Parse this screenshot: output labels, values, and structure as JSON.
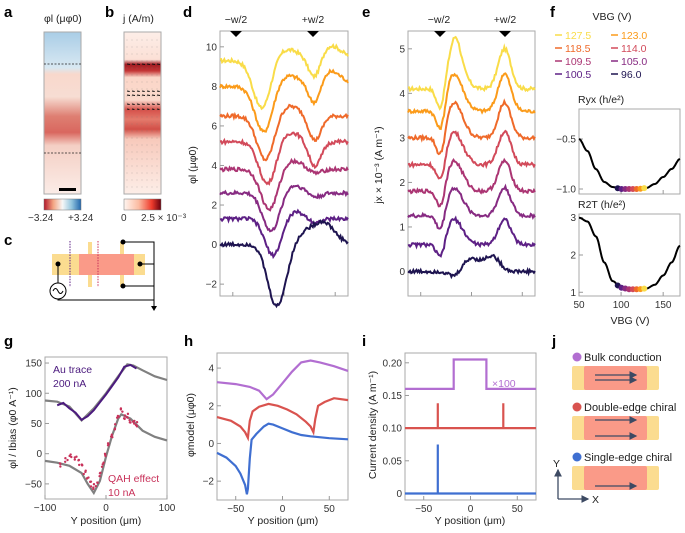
{
  "panel_labels": [
    "a",
    "b",
    "c",
    "d",
    "e",
    "f",
    "g",
    "h",
    "i",
    "j"
  ],
  "panel_a": {
    "title": "φl (μφ0)",
    "colorbar_min": "−3.24",
    "colorbar_max": "+3.24",
    "colormap": [
      "#b2182b",
      "#f4a582",
      "#f7f7f7",
      "#92c5de",
      "#2166ac"
    ]
  },
  "panel_b": {
    "title": "j (A/m)",
    "colorbar_min": "0",
    "colorbar_max": "2.5 × 10⁻³",
    "colormap": [
      "#fff5f0",
      "#fcbba1",
      "#ef3b2c",
      "#67000d"
    ]
  },
  "panel_c": {
    "description": "device schematic with AC source and ground"
  },
  "colors": {
    "sweep": [
      "#f9dc48",
      "#fb9b1a",
      "#ef6a2a",
      "#d24a5a",
      "#ab3573",
      "#872b82",
      "#5d2085",
      "#1e1450"
    ],
    "gray_fit": "#808080",
    "au_trace": "#4b1a7e",
    "qah": "#c8325a",
    "bulk": "#b26ed1",
    "double_edge": "#d9534f",
    "single_edge": "#3f6fd1",
    "device_body": "#fa9a88",
    "device_contact": "#fbdc90",
    "arrow": "#3d4a63"
  },
  "chart_data": [
    {
      "panel": "d",
      "type": "line",
      "title": "",
      "xlabel": "",
      "ylabel": "φl (μφ0)",
      "markers": [
        "−w/2",
        "+w/2"
      ],
      "ylim": [
        -2.6,
        10.8
      ],
      "yticks": [
        -2,
        0,
        2,
        4,
        6,
        8,
        10
      ],
      "series": [
        {
          "name": "127.5 V",
          "offset": 9.3
        },
        {
          "name": "123.0 V",
          "offset": 8.0
        },
        {
          "name": "118.5 V",
          "offset": 6.5
        },
        {
          "name": "114.0 V",
          "offset": 5.2
        },
        {
          "name": "109.5 V",
          "offset": 3.8
        },
        {
          "name": "105.0 V",
          "offset": 2.6
        },
        {
          "name": "100.5 V",
          "offset": 1.3
        },
        {
          "name": "96.0 V",
          "offset": 0.0
        }
      ]
    },
    {
      "panel": "e",
      "type": "line",
      "xlabel": "",
      "ylabel": "jx × 10⁻³ (A m⁻¹)",
      "markers": [
        "−w/2",
        "+w/2"
      ],
      "ylim": [
        -0.55,
        5.4
      ],
      "yticks": [
        0,
        1,
        2,
        3,
        4,
        5
      ],
      "series": [
        {
          "name": "127.5 V",
          "offset": 4.1
        },
        {
          "name": "123.0 V",
          "offset": 3.6
        },
        {
          "name": "118.5 V",
          "offset": 3.0
        },
        {
          "name": "114.0 V",
          "offset": 2.4
        },
        {
          "name": "109.5 V",
          "offset": 1.8
        },
        {
          "name": "105.0 V",
          "offset": 1.25
        },
        {
          "name": "100.5 V",
          "offset": 0.6
        },
        {
          "name": "96.0 V",
          "offset": 0.0
        }
      ]
    },
    {
      "panel": "f",
      "type": "line",
      "legend_title": "VBG (V)",
      "legend": [
        "127.5",
        "123.0",
        "118.5",
        "114.0",
        "109.5",
        "105.0",
        "100.5",
        "96.0"
      ],
      "top": {
        "ylabel": "Ryx (h/e²)",
        "ylim": [
          -1.05,
          -0.2
        ],
        "yticks": [
          -0.5,
          -1.0
        ],
        "x": [
          50,
          60,
          70,
          80,
          90,
          100,
          110,
          120,
          130,
          140,
          150,
          160,
          170
        ],
        "y": [
          -0.5,
          -0.62,
          -0.8,
          -0.93,
          -0.98,
          -1.0,
          -1.0,
          -1.0,
          -0.99,
          -0.95,
          -0.88,
          -0.8,
          -0.7
        ]
      },
      "bottom": {
        "ylabel": "R2T (h/e²)",
        "ylim": [
          0.9,
          3.1
        ],
        "yticks": [
          1,
          2,
          3
        ],
        "x": [
          50,
          60,
          70,
          80,
          90,
          100,
          110,
          120,
          130,
          140,
          150,
          160,
          170
        ],
        "y": [
          3.0,
          2.9,
          2.5,
          1.8,
          1.3,
          1.12,
          1.08,
          1.08,
          1.1,
          1.2,
          1.45,
          1.8,
          2.25
        ]
      },
      "xlabel": "VBG (V)",
      "xlim": [
        50,
        170
      ],
      "xticks": [
        50,
        100,
        150
      ],
      "highlight_x": [
        96.0,
        100.5,
        105.0,
        109.5,
        114.0,
        118.5,
        123.0,
        127.5
      ]
    },
    {
      "panel": "g",
      "type": "scatter",
      "xlabel": "Y position (μm)",
      "ylabel": "φl / Ibias (φ0 A⁻¹)",
      "xlim": [
        -100,
        100
      ],
      "ylim": [
        -75,
        160
      ],
      "xticks": [
        -100,
        0,
        100
      ],
      "yticks": [
        -50,
        0,
        50,
        100,
        150
      ],
      "annotations": [
        "Au trace",
        "200 nA",
        "QAH effect",
        "10 nA"
      ],
      "series": [
        {
          "name": "Au trace fit",
          "x": [
            -100,
            -80,
            -60,
            -40,
            -20,
            0,
            20,
            35,
            45,
            60,
            80,
            100
          ],
          "y": [
            88,
            86,
            78,
            55,
            75,
            100,
            128,
            148,
            146,
            138,
            128,
            122
          ]
        },
        {
          "name": "Au trace data",
          "x": [
            -80,
            -70,
            -60,
            -50,
            -40,
            -30,
            -20,
            -10,
            0,
            10,
            20,
            30,
            40,
            50
          ],
          "y": [
            80,
            84,
            75,
            68,
            56,
            62,
            72,
            85,
            98,
            112,
            126,
            144,
            147,
            141
          ]
        },
        {
          "name": "QAH fit",
          "x": [
            -100,
            -80,
            -60,
            -40,
            -30,
            -20,
            -10,
            0,
            10,
            20,
            25,
            40,
            60,
            80,
            100
          ],
          "y": [
            -12,
            -15,
            -20,
            -32,
            -50,
            -65,
            -45,
            -5,
            30,
            58,
            65,
            58,
            38,
            28,
            22
          ]
        },
        {
          "name": "QAH data",
          "x": [
            -75,
            -65,
            -58,
            -50,
            -45,
            -40,
            -35,
            -30,
            -25,
            -20,
            -15,
            -10,
            -5,
            0,
            5,
            10,
            15,
            20,
            25,
            30,
            35,
            40,
            45,
            50
          ],
          "y": [
            -20,
            -10,
            -5,
            -8,
            -15,
            -22,
            -30,
            -40,
            -50,
            -55,
            -50,
            -35,
            -18,
            -5,
            15,
            30,
            45,
            62,
            72,
            60,
            62,
            55,
            52,
            48
          ]
        }
      ]
    },
    {
      "panel": "h",
      "type": "line",
      "xlabel": "Y position (μm)",
      "ylabel": "φmodel (μφ0)",
      "xlim": [
        -70,
        70
      ],
      "ylim": [
        -3.0,
        4.8
      ],
      "xticks": [
        -50,
        0,
        50
      ],
      "yticks": [
        -2,
        0,
        2,
        4
      ],
      "series": [
        {
          "name": "Bulk conduction",
          "x": [
            -70,
            -50,
            -35,
            -25,
            -17,
            -10,
            0,
            10,
            20,
            30,
            40,
            55,
            70
          ],
          "y": [
            3.25,
            3.15,
            3.0,
            2.8,
            2.35,
            2.6,
            3.2,
            3.8,
            4.3,
            4.4,
            4.3,
            4.1,
            3.85
          ]
        },
        {
          "name": "Double-edge chiral",
          "x": [
            -70,
            -55,
            -45,
            -40,
            -37,
            -35,
            -32,
            -25,
            -15,
            -5,
            5,
            15,
            25,
            30,
            33,
            35,
            38,
            45,
            55,
            70
          ],
          "y": [
            1.4,
            1.2,
            0.9,
            0.6,
            0.3,
            1.2,
            1.7,
            1.95,
            2.1,
            2.0,
            1.8,
            1.55,
            1.15,
            0.9,
            0.6,
            1.3,
            2.0,
            2.2,
            2.4,
            2.3
          ]
        },
        {
          "name": "Single-edge chiral",
          "x": [
            -70,
            -60,
            -50,
            -45,
            -40,
            -38,
            -37,
            -35,
            -33,
            -28,
            -20,
            -15,
            -10,
            0,
            10,
            20,
            30,
            50,
            70
          ],
          "y": [
            -0.5,
            -0.75,
            -1.2,
            -1.6,
            -2.2,
            -2.7,
            -2.4,
            -0.8,
            0.2,
            0.5,
            0.9,
            1.05,
            1.0,
            0.8,
            0.6,
            0.45,
            0.38,
            0.28,
            0.22
          ]
        }
      ]
    },
    {
      "panel": "i",
      "type": "line",
      "xlabel": "Y position (μm)",
      "ylabel": "Current density (A m⁻¹)",
      "xlim": [
        -70,
        70
      ],
      "ylim": [
        -0.01,
        0.215
      ],
      "xticks": [
        -50,
        0,
        50
      ],
      "yticks": [
        0,
        0.05,
        0.1,
        0.15,
        0.2
      ],
      "ytick_labels": [
        "0",
        "0.05",
        "0.10",
        "0.15",
        "0.20"
      ],
      "annotation": "×100",
      "series": [
        {
          "name": "Bulk conduction",
          "x": [
            -70,
            -18,
            -18,
            17,
            17,
            70
          ],
          "y": [
            0.16,
            0.16,
            0.205,
            0.205,
            0.16,
            0.16
          ]
        },
        {
          "name": "Double-edge chiral",
          "x": [
            -70,
            -35,
            -35,
            -35,
            35,
            35,
            35,
            70
          ],
          "y": [
            0.1,
            0.1,
            0.138,
            0.1,
            0.1,
            0.138,
            0.1,
            0.1
          ]
        },
        {
          "name": "Single-edge chiral",
          "x": [
            -70,
            -35,
            -35,
            -35,
            70
          ],
          "y": [
            0,
            0,
            0.075,
            0,
            0
          ]
        }
      ]
    }
  ],
  "panel_j": {
    "items": [
      {
        "label": "Bulk conduction",
        "color": "#b26ed1"
      },
      {
        "label": "Double-edge chiral",
        "color": "#d9534f"
      },
      {
        "label": "Single-edge chiral",
        "color": "#3f6fd1"
      }
    ],
    "axis_y": "Y",
    "axis_x": "X"
  }
}
